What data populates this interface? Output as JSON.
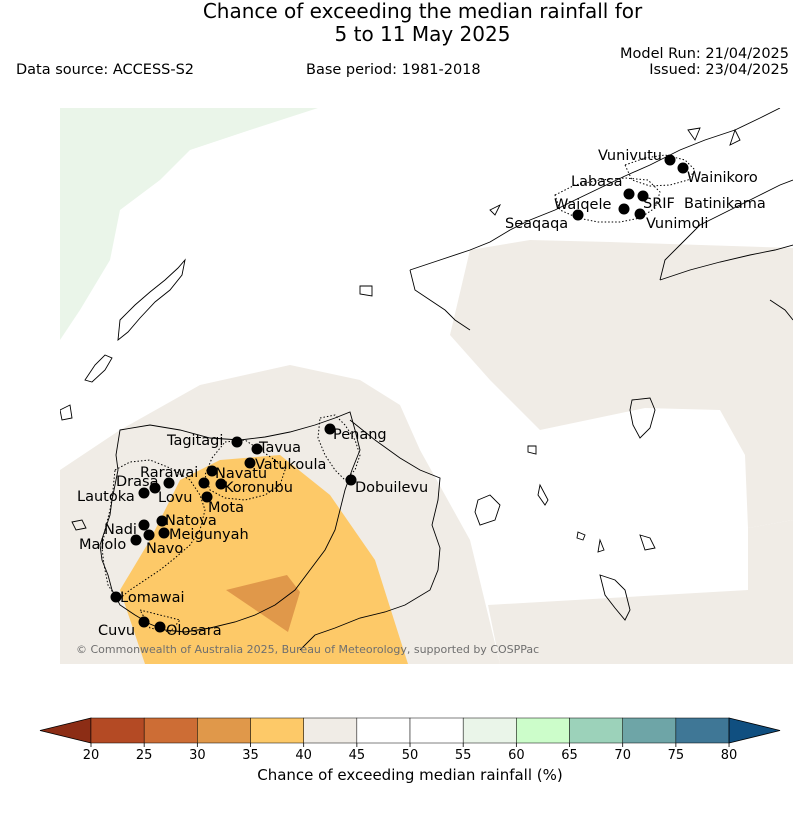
{
  "title": {
    "line1": "Chance of exceeding the median rainfall for",
    "line2": "5 to 11 May 2025"
  },
  "meta": {
    "data_source": "Data source: ACCESS-S2",
    "base_period": "Base period: 1981-2018",
    "model_run": "Model Run: 21/04/2025",
    "issued": "Issued: 23/04/2025"
  },
  "copyright": "© Commonwealth of Australia 2025, Bureau of Meteorology, supported by COSPPac",
  "locations": [
    {
      "name": "Vunivutu"
    },
    {
      "name": "Wainikoro"
    },
    {
      "name": "Labasa"
    },
    {
      "name": "SRIF"
    },
    {
      "name": "Batinikama"
    },
    {
      "name": "Waiqele"
    },
    {
      "name": "Seaqaqa"
    },
    {
      "name": "Vunimoli"
    },
    {
      "name": "Penang"
    },
    {
      "name": "Tagitagi"
    },
    {
      "name": "Tavua"
    },
    {
      "name": "Vatukoula"
    },
    {
      "name": "Rarawai"
    },
    {
      "name": "Navatu"
    },
    {
      "name": "Drasa"
    },
    {
      "name": "Koronubu"
    },
    {
      "name": "Lautoka"
    },
    {
      "name": "Lovu"
    },
    {
      "name": "Dobuilevu"
    },
    {
      "name": "Mota"
    },
    {
      "name": "Natova"
    },
    {
      "name": "Nadi"
    },
    {
      "name": "Meigunyah"
    },
    {
      "name": "Malolo"
    },
    {
      "name": "Navo"
    },
    {
      "name": "Lomawai"
    },
    {
      "name": "Cuvu"
    },
    {
      "name": "Olosara"
    }
  ],
  "colorbar": {
    "ticks": [
      "20",
      "25",
      "30",
      "35",
      "40",
      "45",
      "50",
      "55",
      "60",
      "65",
      "70",
      "75",
      "80"
    ],
    "colors": [
      "#8c2d15",
      "#b44a24",
      "#cd6d35",
      "#e0984a",
      "#fdc968",
      "#f0ece6",
      "#ffffff",
      "#ffffff",
      "#eaf5e9",
      "#ccfdca",
      "#9cd2ba",
      "#6ea5a7",
      "#3f7796",
      "#104f80"
    ],
    "label": "Chance of exceeding median rainfall (%)"
  }
}
